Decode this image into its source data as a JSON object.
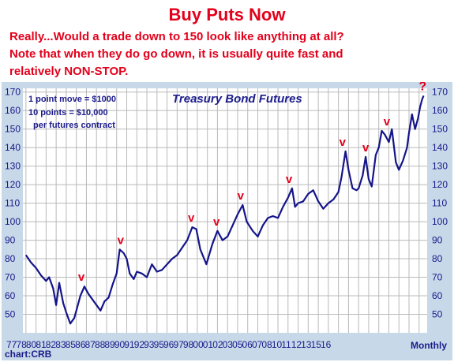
{
  "header": {
    "title": "Buy Puts Now",
    "lines": [
      "Really...Would a trade down to 150 look like anything at all?",
      "Note that when they do go down, it is usually quite fast and",
      "relatively NON-STOP."
    ]
  },
  "chart_data": {
    "type": "line",
    "title": "Treasury Bond Futures",
    "notes": [
      "1 point move = $1000",
      "10 points = $10,000",
      "per futures contract"
    ],
    "x_tick_labels": [
      "77",
      "78",
      "80",
      "81",
      "82",
      "83",
      "85",
      "86",
      "87",
      "88",
      "89",
      "90",
      "91",
      "92",
      "93",
      "95",
      "96",
      "97",
      "98",
      "00",
      "01",
      "02",
      "03",
      "05",
      "06",
      "07",
      "08",
      "10",
      "11",
      "12",
      "13",
      "15",
      "16"
    ],
    "x_axis_label": "Monthly",
    "source": "chart:CRB",
    "ylim": [
      40,
      172
    ],
    "y_ticks": [
      50,
      60,
      70,
      80,
      90,
      100,
      110,
      120,
      130,
      140,
      150,
      160,
      170
    ],
    "grid": true,
    "line_color": "#14148a",
    "marker_color": "#e3001b",
    "series": [
      {
        "values": [
          [
            1977,
            82
          ],
          [
            1977.5,
            78
          ],
          [
            1978,
            75
          ],
          [
            1978.5,
            71
          ],
          [
            1979,
            68
          ],
          [
            1979.3,
            70
          ],
          [
            1979.7,
            64
          ],
          [
            1980,
            55
          ],
          [
            1980.3,
            67
          ],
          [
            1980.7,
            56
          ],
          [
            1981,
            51
          ],
          [
            1981.4,
            45
          ],
          [
            1981.8,
            48
          ],
          [
            1982,
            52
          ],
          [
            1982.4,
            60
          ],
          [
            1982.8,
            65
          ],
          [
            1983.2,
            61
          ],
          [
            1983.6,
            58
          ],
          [
            1984,
            55
          ],
          [
            1984.4,
            52
          ],
          [
            1984.8,
            57
          ],
          [
            1985.2,
            59
          ],
          [
            1985.6,
            66
          ],
          [
            1986,
            72
          ],
          [
            1986.3,
            85
          ],
          [
            1986.7,
            83
          ],
          [
            1987,
            80
          ],
          [
            1987.3,
            72
          ],
          [
            1987.7,
            69
          ],
          [
            1988,
            73
          ],
          [
            1988.5,
            72
          ],
          [
            1989,
            70
          ],
          [
            1989.5,
            77
          ],
          [
            1990,
            73
          ],
          [
            1990.5,
            74
          ],
          [
            1991,
            77
          ],
          [
            1991.5,
            80
          ],
          [
            1992,
            82
          ],
          [
            1992.5,
            86
          ],
          [
            1993,
            90
          ],
          [
            1993.5,
            97
          ],
          [
            1993.9,
            96
          ],
          [
            1994.3,
            85
          ],
          [
            1994.9,
            77
          ],
          [
            1995.5,
            88
          ],
          [
            1996,
            95
          ],
          [
            1996.5,
            90
          ],
          [
            1997,
            92
          ],
          [
            1997.5,
            98
          ],
          [
            1998,
            104
          ],
          [
            1998.5,
            109
          ],
          [
            1998.9,
            100
          ],
          [
            1999.5,
            95
          ],
          [
            2000,
            92
          ],
          [
            2000.5,
            98
          ],
          [
            2001,
            102
          ],
          [
            2001.5,
            103
          ],
          [
            2002,
            102
          ],
          [
            2002.5,
            108
          ],
          [
            2003,
            113
          ],
          [
            2003.4,
            118
          ],
          [
            2003.7,
            108
          ],
          [
            2004,
            110
          ],
          [
            2004.5,
            111
          ],
          [
            2005,
            115
          ],
          [
            2005.5,
            117
          ],
          [
            2006,
            111
          ],
          [
            2006.5,
            107
          ],
          [
            2007,
            110
          ],
          [
            2007.5,
            112
          ],
          [
            2008,
            116
          ],
          [
            2008.3,
            124
          ],
          [
            2008.7,
            138
          ],
          [
            2009,
            128
          ],
          [
            2009.4,
            118
          ],
          [
            2009.8,
            117
          ],
          [
            2010,
            118
          ],
          [
            2010.4,
            125
          ],
          [
            2010.7,
            135
          ],
          [
            2011,
            123
          ],
          [
            2011.3,
            119
          ],
          [
            2011.7,
            136
          ],
          [
            2012,
            140
          ],
          [
            2012.3,
            149
          ],
          [
            2012.6,
            147
          ],
          [
            2013,
            143
          ],
          [
            2013.3,
            150
          ],
          [
            2013.7,
            132
          ],
          [
            2014,
            128
          ],
          [
            2014.4,
            133
          ],
          [
            2014.8,
            140
          ],
          [
            2015,
            148
          ],
          [
            2015.3,
            158
          ],
          [
            2015.6,
            150
          ],
          [
            2015.9,
            156
          ],
          [
            2016.1,
            162
          ],
          [
            2016.3,
            166
          ],
          [
            2016.45,
            168
          ]
        ]
      }
    ],
    "markers": [
      {
        "label": "v",
        "x": 1982.5,
        "y": 68
      },
      {
        "label": "v",
        "x": 1986.4,
        "y": 88
      },
      {
        "label": "v",
        "x": 1993.4,
        "y": 100
      },
      {
        "label": "v",
        "x": 1995.9,
        "y": 98
      },
      {
        "label": "v",
        "x": 1998.3,
        "y": 112
      },
      {
        "label": "v",
        "x": 2003.1,
        "y": 121
      },
      {
        "label": "v",
        "x": 2008.4,
        "y": 141
      },
      {
        "label": "v",
        "x": 2010.7,
        "y": 138
      },
      {
        "label": "v",
        "x": 2012.8,
        "y": 152
      },
      {
        "label": "?",
        "x": 2016.35,
        "y": 171
      }
    ]
  }
}
